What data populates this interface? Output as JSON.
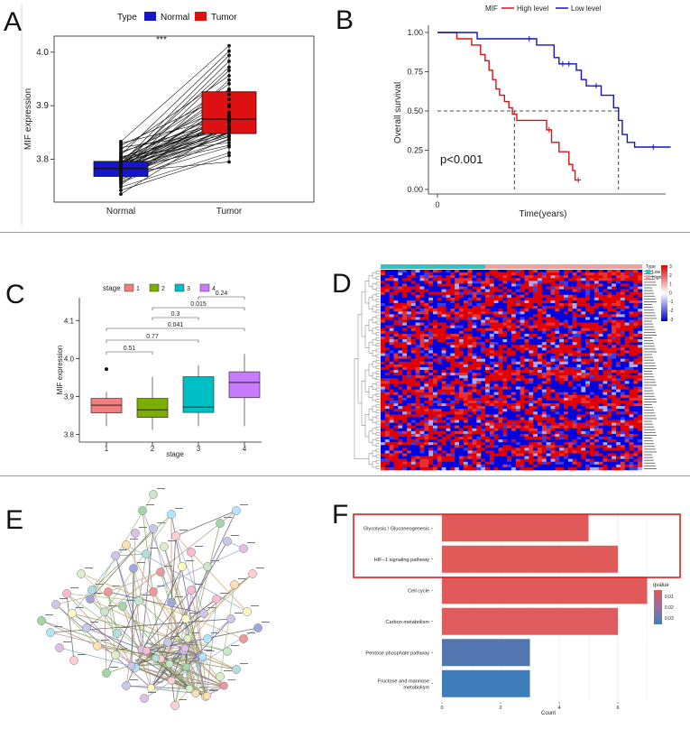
{
  "panels": {
    "A": {
      "label": "A",
      "legend_title": "Type",
      "significance": "***",
      "chart_data": {
        "type": "paired-box",
        "categories": [
          "Normal",
          "Tumor"
        ],
        "colors": {
          "Normal": "#1515c9",
          "Tumor": "#dd1111"
        },
        "ylabel": "MIF expression",
        "ylim": [
          3.72,
          4.03
        ],
        "yticks": [
          3.8,
          3.9,
          4.0
        ],
        "boxes": [
          {
            "name": "Normal",
            "q1": 3.768,
            "median": 3.783,
            "q3": 3.796,
            "whisker_low": 3.735,
            "whisker_high": 3.833
          },
          {
            "name": "Tumor",
            "q1": 3.848,
            "median": 3.875,
            "q3": 3.926,
            "whisker_low": 3.795,
            "whisker_high": 4.012
          }
        ],
        "pairs": [
          [
            3.735,
            3.862
          ],
          [
            3.742,
            3.807
          ],
          [
            3.748,
            3.812
          ],
          [
            3.752,
            3.902
          ],
          [
            3.756,
            3.838
          ],
          [
            3.758,
            3.851
          ],
          [
            3.761,
            3.881
          ],
          [
            3.763,
            3.823
          ],
          [
            3.765,
            3.862
          ],
          [
            3.767,
            3.948
          ],
          [
            3.768,
            3.849
          ],
          [
            3.77,
            3.871
          ],
          [
            3.771,
            3.836
          ],
          [
            3.772,
            3.912
          ],
          [
            3.774,
            3.858
          ],
          [
            3.775,
            3.885
          ],
          [
            3.776,
            3.966
          ],
          [
            3.777,
            3.843
          ],
          [
            3.778,
            3.872
          ],
          [
            3.779,
            3.902
          ],
          [
            3.78,
            3.826
          ],
          [
            3.781,
            3.859
          ],
          [
            3.782,
            3.929
          ],
          [
            3.783,
            3.881
          ],
          [
            3.784,
            3.851
          ],
          [
            3.785,
            3.983
          ],
          [
            3.786,
            3.868
          ],
          [
            3.787,
            3.898
          ],
          [
            3.788,
            3.845
          ],
          [
            3.789,
            3.921
          ],
          [
            3.79,
            3.872
          ],
          [
            3.791,
            3.855
          ],
          [
            3.792,
            3.994
          ],
          [
            3.793,
            3.882
          ],
          [
            3.794,
            3.849
          ],
          [
            3.795,
            3.912
          ],
          [
            3.796,
            3.869
          ],
          [
            3.798,
            3.941
          ],
          [
            3.8,
            3.861
          ],
          [
            3.802,
            3.888
          ],
          [
            3.805,
            3.831
          ],
          [
            3.808,
            4.002
          ],
          [
            3.811,
            3.899
          ],
          [
            3.814,
            3.874
          ],
          [
            3.818,
            3.956
          ],
          [
            3.822,
            3.852
          ],
          [
            3.826,
            3.921
          ],
          [
            3.83,
            3.879
          ],
          [
            3.833,
            4.012
          ],
          [
            3.776,
            3.795
          ],
          [
            3.781,
            3.842
          ],
          [
            3.788,
            3.972
          ],
          [
            3.794,
            3.878
          ],
          [
            3.799,
            3.931
          ],
          [
            3.804,
            3.862
          ]
        ]
      }
    },
    "B": {
      "label": "B",
      "legend_title": "MIF",
      "pvalue": "p<0.001",
      "chart_data": {
        "type": "km-survival",
        "xlabel": "Time(years)",
        "ylabel": "Overall survival",
        "xticks": [
          0
        ],
        "ylim": [
          0,
          1
        ],
        "yticks": [
          "0.00",
          "0.25",
          "0.50",
          "0.75",
          "1.00"
        ],
        "series": [
          {
            "name": "High level",
            "color": "#dd1111",
            "steps": [
              [
                0,
                1.0
              ],
              [
                0.78,
                1.0
              ],
              [
                0.78,
                0.96
              ],
              [
                1.38,
                0.96
              ],
              [
                1.38,
                0.92
              ],
              [
                1.74,
                0.92
              ],
              [
                1.74,
                0.86
              ],
              [
                1.92,
                0.86
              ],
              [
                1.92,
                0.82
              ],
              [
                2.08,
                0.82
              ],
              [
                2.08,
                0.76
              ],
              [
                2.22,
                0.76
              ],
              [
                2.22,
                0.7
              ],
              [
                2.36,
                0.7
              ],
              [
                2.36,
                0.64
              ],
              [
                2.5,
                0.64
              ],
              [
                2.5,
                0.6
              ],
              [
                2.7,
                0.6
              ],
              [
                2.7,
                0.56
              ],
              [
                2.88,
                0.56
              ],
              [
                2.88,
                0.52
              ],
              [
                3.02,
                0.52
              ],
              [
                3.02,
                0.48
              ],
              [
                3.2,
                0.48
              ],
              [
                3.2,
                0.44
              ],
              [
                4.4,
                0.44
              ],
              [
                4.4,
                0.38
              ],
              [
                4.6,
                0.38
              ],
              [
                4.6,
                0.3
              ],
              [
                4.9,
                0.3
              ],
              [
                4.9,
                0.24
              ],
              [
                5.3,
                0.24
              ],
              [
                5.3,
                0.16
              ],
              [
                5.45,
                0.16
              ],
              [
                5.45,
                0.12
              ],
              [
                5.55,
                0.12
              ],
              [
                5.55,
                0.06
              ],
              [
                5.7,
                0.06
              ]
            ],
            "censors": [
              [
                4.5,
                0.38
              ],
              [
                5.68,
                0.06
              ]
            ]
          },
          {
            "name": "Low level",
            "color": "#1313c4",
            "steps": [
              [
                0,
                1.0
              ],
              [
                1.6,
                1.0
              ],
              [
                1.6,
                0.96
              ],
              [
                4.0,
                0.96
              ],
              [
                4.0,
                0.92
              ],
              [
                4.7,
                0.92
              ],
              [
                4.7,
                0.84
              ],
              [
                4.9,
                0.84
              ],
              [
                4.9,
                0.8
              ],
              [
                5.6,
                0.8
              ],
              [
                5.6,
                0.76
              ],
              [
                5.8,
                0.76
              ],
              [
                5.8,
                0.7
              ],
              [
                6.0,
                0.7
              ],
              [
                6.0,
                0.66
              ],
              [
                6.6,
                0.66
              ],
              [
                6.6,
                0.6
              ],
              [
                7.1,
                0.6
              ],
              [
                7.1,
                0.52
              ],
              [
                7.3,
                0.52
              ],
              [
                7.3,
                0.44
              ],
              [
                7.45,
                0.44
              ],
              [
                7.45,
                0.35
              ],
              [
                7.65,
                0.35
              ],
              [
                7.65,
                0.3
              ],
              [
                7.95,
                0.3
              ],
              [
                7.95,
                0.27
              ],
              [
                9.4,
                0.27
              ]
            ],
            "censors": [
              [
                3.7,
                0.96
              ],
              [
                5.05,
                0.8
              ],
              [
                5.3,
                0.8
              ],
              [
                6.4,
                0.66
              ],
              [
                8.7,
                0.27
              ]
            ]
          }
        ],
        "median_survival": [
          {
            "series": "High level",
            "x": 3.1
          },
          {
            "series": "Low level",
            "x": 7.3
          }
        ]
      }
    },
    "C": {
      "label": "C",
      "legend_title": "stage",
      "chart_data": {
        "type": "box",
        "categories": [
          "1",
          "2",
          "3",
          "4"
        ],
        "colors": [
          "#f08080",
          "#7cae00",
          "#00bfc4",
          "#c77cff"
        ],
        "xlabel": "stage",
        "ylabel": "MIF expression",
        "ylim": [
          3.78,
          4.16
        ],
        "yticks": [
          3.8,
          3.9,
          4.0,
          4.1
        ],
        "boxes": [
          {
            "name": "1",
            "q1": 3.857,
            "median": 3.877,
            "q3": 3.895,
            "whisker_low": 3.822,
            "whisker_high": 3.912,
            "outliers": [
              3.972
            ]
          },
          {
            "name": "2",
            "q1": 3.845,
            "median": 3.865,
            "q3": 3.895,
            "whisker_low": 3.812,
            "whisker_high": 3.952,
            "outliers": []
          },
          {
            "name": "3",
            "q1": 3.858,
            "median": 3.872,
            "q3": 3.952,
            "whisker_low": 3.822,
            "whisker_high": 3.982,
            "outliers": []
          },
          {
            "name": "4",
            "q1": 3.897,
            "median": 3.937,
            "q3": 3.965,
            "whisker_low": 3.822,
            "whisker_high": 4.012,
            "outliers": []
          }
        ],
        "comparisons": [
          {
            "from": "1",
            "to": "2",
            "p": "0.51"
          },
          {
            "from": "1",
            "to": "3",
            "p": "0.77"
          },
          {
            "from": "1",
            "to": "4",
            "p": "0.041"
          },
          {
            "from": "2",
            "to": "3",
            "p": "0.3"
          },
          {
            "from": "2",
            "to": "4",
            "p": "0.015"
          },
          {
            "from": "3",
            "to": "4",
            "p": "0.24"
          }
        ]
      }
    },
    "D": {
      "label": "D",
      "annotation_legend": {
        "title": "Type",
        "entries": [
          "Low",
          "High"
        ],
        "colors": [
          "#2ec4c4",
          "#f0a0a0"
        ]
      },
      "color_scale": {
        "ticks": [
          "3",
          "2",
          "1",
          "0",
          "-1",
          "-2",
          "-3"
        ],
        "high": "#e00000",
        "mid": "#ffffff",
        "low": "#0000dd"
      },
      "chart_data": {
        "type": "heatmap",
        "rows": 72,
        "columns": 60,
        "low_group_columns": 24
      }
    },
    "E": {
      "label": "E",
      "network": {
        "type": "protein-protein interaction network",
        "nodes": 78
      }
    },
    "F": {
      "label": "F",
      "legend_title": "qvalue",
      "legend_ticks": [
        "0.01",
        "0.02",
        "0.03"
      ],
      "chart_data": {
        "type": "bar",
        "orientation": "horizontal",
        "xlabel": "Count",
        "xticks": [
          0,
          2,
          4,
          6
        ],
        "xlim": [
          0,
          7.6
        ],
        "categories": [
          "Glycolysis / Gluconeogenesis",
          "HIF−1 signaling pathway",
          "Cell cycle",
          "Carbon metabolism",
          "Pentose phosphate pathway",
          "Fructose and mannose metabolism"
        ],
        "values": [
          5,
          6,
          7,
          6,
          3,
          3
        ],
        "colors": [
          "#e05a5a",
          "#e05a5a",
          "#e05a5a",
          "#de5b5e",
          "#5476b0",
          "#3e7cba"
        ],
        "highlighted": [
          "Glycolysis / Gluconeogenesis",
          "HIF−1 signaling pathway"
        ]
      }
    }
  }
}
